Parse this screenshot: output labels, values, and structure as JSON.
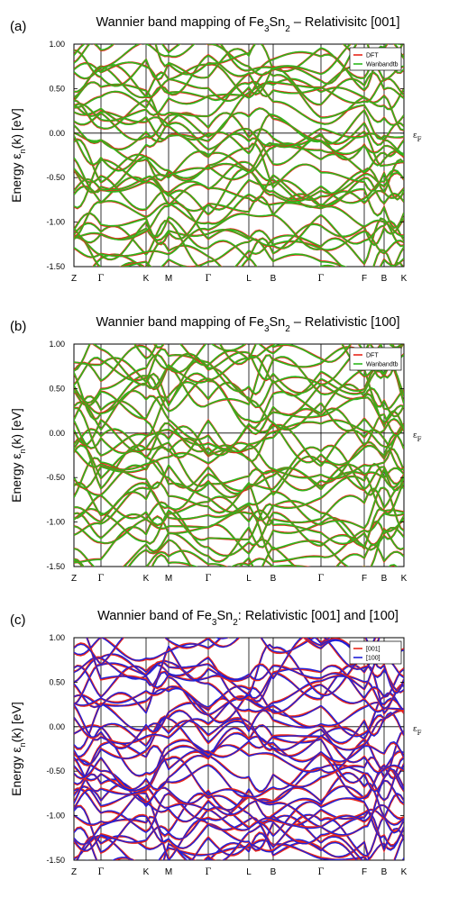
{
  "panels": [
    {
      "label": "(a)",
      "title_parts": [
        "Wannier band mapping of Fe",
        "3",
        "Sn",
        "2",
        " – Relativisitc [001]"
      ],
      "y_label_parts": [
        "Energy ε",
        "n",
        "(k) [eV]"
      ],
      "fermi_label": [
        "ε",
        "F"
      ],
      "legend": [
        {
          "name": "DFT",
          "color": "#e8261a"
        },
        {
          "name": "Wanbandtb",
          "color": "#2db81d"
        }
      ]
    },
    {
      "label": "(b)",
      "title_parts": [
        "Wannier band mapping of Fe",
        "3",
        "Sn",
        "2",
        " – Relativistic [100]"
      ],
      "y_label_parts": [
        "Energy ε",
        "n",
        "(k) [eV]"
      ],
      "fermi_label": [
        "ε",
        "F"
      ],
      "legend": [
        {
          "name": "DFT",
          "color": "#e8261a"
        },
        {
          "name": "Wanbandtb",
          "color": "#2db81d"
        }
      ]
    },
    {
      "label": "(c)",
      "title_parts": [
        "Wannier band of Fe",
        "3",
        "Sn",
        "2",
        ": Relativistic [001] and [100]"
      ],
      "y_label_parts": [
        "Energy ε",
        "n",
        "(k) [eV]"
      ],
      "fermi_label": [
        "ε",
        "F"
      ],
      "legend": [
        {
          "name": "[001]",
          "color": "#e8261a"
        },
        {
          "name": "[100]",
          "color": "#2020d8"
        }
      ]
    }
  ],
  "chart_data": [
    {
      "type": "line",
      "title": "Wannier band mapping of Fe3Sn2 – Relativisitc [001]",
      "ylabel": "Energy εn(k) [eV]",
      "ylim": [
        -1.5,
        1.0
      ],
      "y_ticks": [
        "1.00",
        "0.50",
        "0.00",
        "-0.50",
        "-1.00",
        "-1.50"
      ],
      "k_path": [
        "Z",
        "Γ",
        "K",
        "M",
        "Γ",
        "L",
        "B",
        "Γ",
        "F",
        "B",
        "K"
      ],
      "series": [
        {
          "name": "DFT",
          "color": "#e8261a"
        },
        {
          "name": "Wanbandtb",
          "color": "#2db81d"
        }
      ],
      "grid": true,
      "legend_position": "top-right"
    },
    {
      "type": "line",
      "title": "Wannier band mapping of Fe3Sn2 – Relativistic [100]",
      "ylabel": "Energy εn(k) [eV]",
      "ylim": [
        -1.5,
        1.0
      ],
      "y_ticks": [
        "1.00",
        "0.50",
        "0.00",
        "-0.50",
        "-1.00",
        "-1.50"
      ],
      "k_path": [
        "Z",
        "Γ",
        "K",
        "M",
        "Γ",
        "L",
        "B",
        "Γ",
        "F",
        "B",
        "K"
      ],
      "series": [
        {
          "name": "DFT",
          "color": "#e8261a"
        },
        {
          "name": "Wanbandtb",
          "color": "#2db81d"
        }
      ],
      "grid": true,
      "legend_position": "top-right"
    },
    {
      "type": "line",
      "title": "Wannier band of Fe3Sn2: Relativistic [001] and [100]",
      "ylabel": "Energy εn(k) [eV]",
      "ylim": [
        -1.5,
        1.0
      ],
      "y_ticks": [
        "1.00",
        "0.50",
        "0.00",
        "-0.50",
        "-1.00",
        "-1.50"
      ],
      "k_path": [
        "Z",
        "Γ",
        "K",
        "M",
        "Γ",
        "L",
        "B",
        "Γ",
        "F",
        "B",
        "K"
      ],
      "series": [
        {
          "name": "[001]",
          "color": "#e8261a"
        },
        {
          "name": "[100]",
          "color": "#2020d8"
        }
      ],
      "grid": true,
      "legend_position": "top-right"
    }
  ]
}
